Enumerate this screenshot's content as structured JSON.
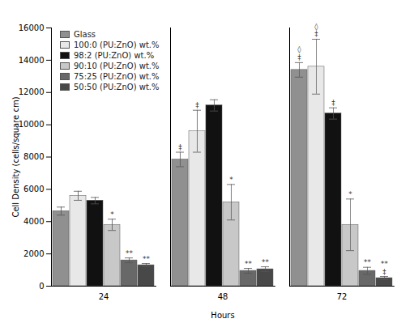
{
  "chart_data": {
    "type": "bar",
    "xlabel": "Hours",
    "ylabel": "Cell Density (cells/square cm)",
    "categories": [
      "24",
      "48",
      "72"
    ],
    "ylim": [
      0,
      16000
    ],
    "yticks": [
      0,
      2000,
      4000,
      6000,
      8000,
      10000,
      12000,
      14000,
      16000
    ],
    "legend": "upper left",
    "series": [
      {
        "name": "Glass",
        "color": "#909090",
        "values": [
          4650,
          7850,
          13400
        ],
        "errors": [
          250,
          450,
          450
        ],
        "annotations": [
          null,
          "‡",
          "◊\n‡"
        ]
      },
      {
        "name": "100:0 (PU:ZnO) wt.%",
        "color": "#e8e8e8",
        "values": [
          5600,
          9600,
          13600
        ],
        "errors": [
          280,
          1300,
          1700
        ],
        "annotations": [
          null,
          "‡",
          "◊\n‡"
        ]
      },
      {
        "name": "98:2 (PU:ZnO) wt.%",
        "color": "#111111",
        "values": [
          5300,
          11200,
          10700
        ],
        "errors": [
          200,
          350,
          350
        ],
        "annotations": [
          null,
          null,
          "‡"
        ]
      },
      {
        "name": "90:10 (PU:ZnO) wt.%",
        "color": "#c8c8c8",
        "values": [
          3800,
          5200,
          3800
        ],
        "errors": [
          350,
          1100,
          1600
        ],
        "annotations": [
          "*",
          "*",
          "*"
        ]
      },
      {
        "name": "75:25 (PU:ZnO) wt.%",
        "color": "#686868",
        "values": [
          1600,
          950,
          950
        ],
        "errors": [
          150,
          150,
          220
        ],
        "annotations": [
          "**",
          "**",
          "**"
        ]
      },
      {
        "name": "50:50 (PU:ZnO) wt.%",
        "color": "#484848",
        "values": [
          1300,
          1050,
          500
        ],
        "errors": [
          100,
          150,
          100
        ],
        "annotations": [
          "**",
          "**",
          "**\n‡"
        ]
      }
    ]
  }
}
